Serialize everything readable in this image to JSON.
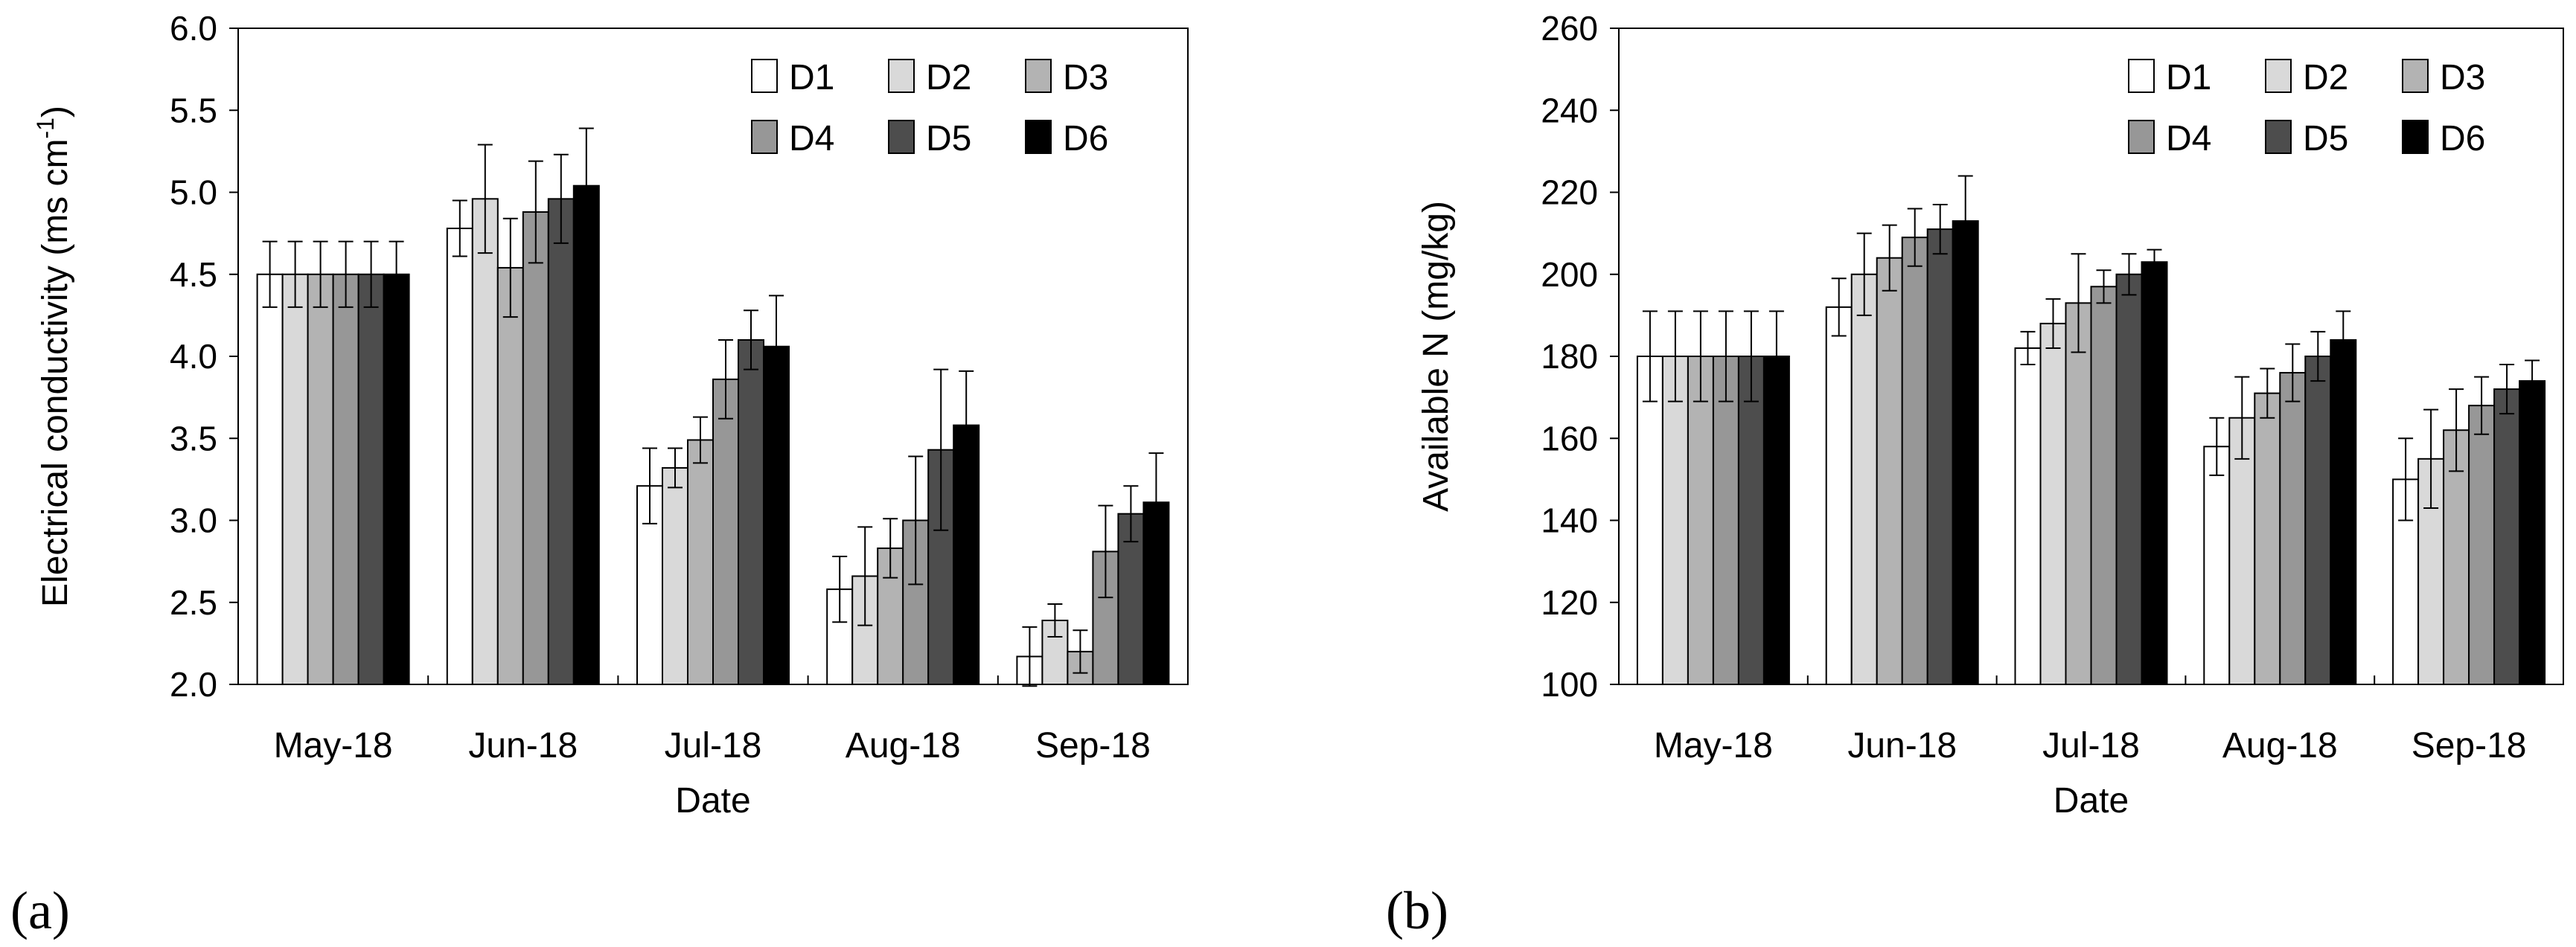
{
  "figure": {
    "panels": [
      "(a)",
      "(b)"
    ]
  },
  "colors": {
    "D1": "#ffffff",
    "D2": "#d9d9d9",
    "D3": "#b3b3b3",
    "D4": "#979797",
    "D5": "#4d4d4d",
    "D6": "#000000"
  },
  "chart_data": [
    {
      "type": "bar",
      "panel_label": "(a)",
      "title": "",
      "xlabel": "Date",
      "ylabel": "Electrical conductivity (ms cm",
      "ylabel_sup": "-1",
      "ylabel_end": ")",
      "ylim": [
        2.0,
        6.0
      ],
      "yticks": [
        "2.0",
        "2.5",
        "3.0",
        "3.5",
        "4.0",
        "4.5",
        "5.0",
        "5.5",
        "6.0"
      ],
      "categories": [
        "May-18",
        "Jun-18",
        "Jul-18",
        "Aug-18",
        "Sep-18"
      ],
      "legend_position": "top-right",
      "series": [
        {
          "name": "D1",
          "values": [
            4.5,
            4.78,
            3.21,
            2.58,
            2.17
          ],
          "errors": [
            0.2,
            0.17,
            0.23,
            0.2,
            0.18
          ]
        },
        {
          "name": "D2",
          "values": [
            4.5,
            4.96,
            3.32,
            2.66,
            2.39
          ],
          "errors": [
            0.2,
            0.33,
            0.12,
            0.3,
            0.1
          ]
        },
        {
          "name": "D3",
          "values": [
            4.5,
            4.54,
            3.49,
            2.83,
            2.2
          ],
          "errors": [
            0.2,
            0.3,
            0.14,
            0.18,
            0.13
          ]
        },
        {
          "name": "D4",
          "values": [
            4.5,
            4.88,
            3.86,
            3.0,
            2.81
          ],
          "errors": [
            0.2,
            0.31,
            0.24,
            0.39,
            0.28
          ]
        },
        {
          "name": "D5",
          "values": [
            4.5,
            4.96,
            4.1,
            3.43,
            3.04
          ],
          "errors": [
            0.2,
            0.27,
            0.18,
            0.49,
            0.17
          ]
        },
        {
          "name": "D6",
          "values": [
            4.5,
            5.04,
            4.06,
            3.58,
            3.11
          ],
          "errors": [
            0.2,
            0.35,
            0.31,
            0.33,
            0.3
          ]
        }
      ]
    },
    {
      "type": "bar",
      "panel_label": "(b)",
      "title": "",
      "xlabel": "Date",
      "ylabel": "Available N (mg/kg)",
      "ylabel_sup": "",
      "ylabel_end": "",
      "ylim": [
        100,
        260
      ],
      "yticks": [
        "100",
        "120",
        "140",
        "160",
        "180",
        "200",
        "220",
        "240",
        "260"
      ],
      "categories": [
        "May-18",
        "Jun-18",
        "Jul-18",
        "Aug-18",
        "Sep-18"
      ],
      "legend_position": "top-right",
      "series": [
        {
          "name": "D1",
          "values": [
            180,
            192,
            182,
            158,
            150
          ],
          "errors": [
            11,
            7,
            4,
            7,
            10
          ]
        },
        {
          "name": "D2",
          "values": [
            180,
            200,
            188,
            165,
            155
          ],
          "errors": [
            11,
            10,
            6,
            10,
            12
          ]
        },
        {
          "name": "D3",
          "values": [
            180,
            204,
            193,
            171,
            162
          ],
          "errors": [
            11,
            8,
            12,
            6,
            10
          ]
        },
        {
          "name": "D4",
          "values": [
            180,
            209,
            197,
            176,
            168
          ],
          "errors": [
            11,
            7,
            4,
            7,
            7
          ]
        },
        {
          "name": "D5",
          "values": [
            180,
            211,
            200,
            180,
            172
          ],
          "errors": [
            11,
            6,
            5,
            6,
            6
          ]
        },
        {
          "name": "D6",
          "values": [
            180,
            213,
            203,
            184,
            174
          ],
          "errors": [
            11,
            11,
            3,
            7,
            5
          ]
        }
      ]
    }
  ]
}
